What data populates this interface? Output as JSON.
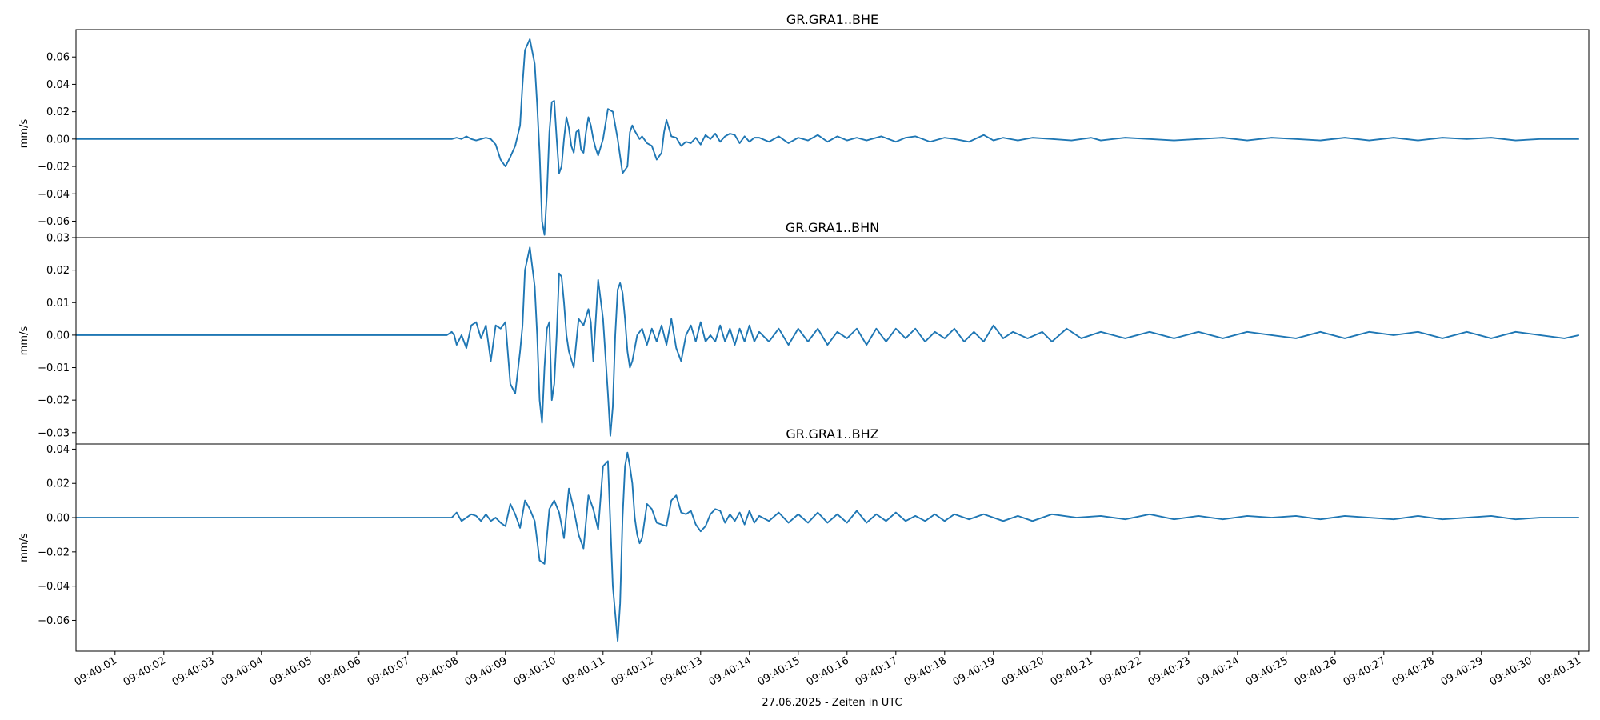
{
  "chart_data": [
    {
      "type": "line",
      "title": "GR.GRA1..BHE",
      "ylabel": "mm/s",
      "xlabel": "",
      "ylim": [
        -0.072,
        0.08
      ],
      "yticks": [
        -0.06,
        -0.04,
        -0.02,
        0.0,
        0.02,
        0.04,
        0.06
      ],
      "ytick_labels": [
        "−0.06",
        "−0.04",
        "−0.02",
        "0.00",
        "0.02",
        "0.04",
        "0.06"
      ],
      "color": "#1f77b4",
      "series": [
        {
          "x": [
            0.0,
            7.7,
            7.8,
            7.9,
            8.0,
            8.1,
            8.2,
            8.3,
            8.4,
            8.5,
            8.6,
            8.7,
            8.8,
            8.9,
            9.0,
            9.1,
            9.15,
            9.2,
            9.3,
            9.4,
            9.45,
            9.5,
            9.55,
            9.6,
            9.65,
            9.7,
            9.75,
            9.8,
            9.85,
            9.9,
            9.95,
            10.0,
            10.05,
            10.1,
            10.15,
            10.2,
            10.25,
            10.3,
            10.35,
            10.4,
            10.45,
            10.5,
            10.55,
            10.6,
            10.65,
            10.7,
            10.8,
            10.9,
            11.0,
            11.1,
            11.2,
            11.3,
            11.35,
            11.4,
            11.45,
            11.5,
            11.55,
            11.6,
            11.7,
            11.8,
            11.9,
            12.0,
            12.05,
            12.1,
            12.2,
            12.3,
            12.4,
            12.5,
            12.6,
            12.7,
            12.8,
            12.9,
            13.0,
            13.1,
            13.2,
            13.3,
            13.4,
            13.5,
            13.6,
            13.7,
            13.8,
            13.9,
            14.0,
            14.2,
            14.4,
            14.6,
            14.8,
            15.0,
            15.2,
            15.4,
            15.6,
            15.8,
            16.0,
            16.2,
            16.5,
            16.8,
            17.0,
            17.2,
            17.5,
            17.8,
            18.0,
            18.3,
            18.6,
            18.8,
            19.0,
            19.3,
            19.6,
            20.0,
            20.4,
            20.8,
            21.0,
            21.5,
            22.0,
            22.5,
            23.0,
            23.5,
            24.0,
            24.5,
            25.0,
            25.5,
            26.0,
            26.5,
            27.0,
            27.5,
            28.0,
            28.5,
            29.0,
            29.5,
            30.0,
            30.5,
            30.8
          ],
          "y": [
            0.0,
            0.0,
            0.001,
            0.0,
            0.002,
            0.0,
            -0.001,
            0.0,
            0.001,
            0.0,
            -0.004,
            -0.015,
            -0.02,
            -0.013,
            -0.005,
            0.01,
            0.04,
            0.065,
            0.073,
            0.055,
            0.025,
            -0.01,
            -0.06,
            -0.07,
            -0.04,
            0.005,
            0.027,
            0.028,
            0.0,
            -0.025,
            -0.02,
            0.0,
            0.016,
            0.008,
            -0.005,
            -0.01,
            0.005,
            0.007,
            -0.008,
            -0.01,
            0.005,
            0.016,
            0.01,
            0.0,
            -0.007,
            -0.012,
            0.0,
            0.022,
            0.02,
            0.0,
            -0.025,
            -0.02,
            0.005,
            0.01,
            0.006,
            0.003,
            0.0,
            0.002,
            -0.003,
            -0.005,
            -0.015,
            -0.01,
            0.005,
            0.014,
            0.002,
            0.001,
            -0.005,
            -0.002,
            -0.003,
            0.001,
            -0.004,
            0.003,
            0.0,
            0.004,
            -0.002,
            0.002,
            0.004,
            0.003,
            -0.003,
            0.002,
            -0.002,
            0.001,
            0.001,
            -0.002,
            0.002,
            -0.003,
            0.001,
            -0.001,
            0.003,
            -0.002,
            0.002,
            -0.001,
            0.001,
            -0.001,
            0.002,
            -0.002,
            0.001,
            0.002,
            -0.002,
            0.001,
            0.0,
            -0.002,
            0.003,
            -0.001,
            0.001,
            -0.001,
            0.001,
            0.0,
            -0.001,
            0.001,
            -0.001,
            0.001,
            0.0,
            -0.001,
            0.0,
            0.001,
            -0.001,
            0.001,
            0.0,
            -0.001,
            0.001,
            -0.001,
            0.001,
            -0.001,
            0.001,
            0.0,
            0.001,
            -0.001,
            0.0,
            0.0,
            0.0
          ]
        }
      ]
    },
    {
      "type": "line",
      "title": "GR.GRA1..BHN",
      "ylabel": "mm/s",
      "xlabel": "",
      "ylim": [
        -0.0335,
        0.03
      ],
      "yticks": [
        -0.03,
        -0.02,
        -0.01,
        0.0,
        0.01,
        0.02,
        0.03
      ],
      "ytick_labels": [
        "−0.03",
        "−0.02",
        "−0.01",
        "0.00",
        "0.01",
        "0.02",
        "0.03"
      ],
      "color": "#1f77b4",
      "series": [
        {
          "x": [
            0.0,
            7.6,
            7.7,
            7.75,
            7.8,
            7.9,
            8.0,
            8.1,
            8.2,
            8.3,
            8.4,
            8.5,
            8.6,
            8.7,
            8.8,
            8.9,
            9.0,
            9.1,
            9.15,
            9.2,
            9.3,
            9.4,
            9.45,
            9.5,
            9.55,
            9.6,
            9.65,
            9.7,
            9.75,
            9.8,
            9.85,
            9.9,
            9.95,
            10.0,
            10.05,
            10.1,
            10.2,
            10.3,
            10.4,
            10.5,
            10.55,
            10.6,
            10.7,
            10.8,
            10.9,
            10.95,
            11.0,
            11.05,
            11.1,
            11.15,
            11.2,
            11.25,
            11.3,
            11.35,
            11.4,
            11.5,
            11.6,
            11.7,
            11.8,
            11.9,
            12.0,
            12.1,
            12.2,
            12.3,
            12.4,
            12.5,
            12.6,
            12.7,
            12.8,
            12.9,
            13.0,
            13.1,
            13.2,
            13.3,
            13.4,
            13.5,
            13.6,
            13.7,
            13.8,
            13.9,
            14.0,
            14.2,
            14.4,
            14.6,
            14.8,
            15.0,
            15.2,
            15.4,
            15.6,
            15.8,
            16.0,
            16.2,
            16.4,
            16.6,
            16.8,
            17.0,
            17.2,
            17.4,
            17.6,
            17.8,
            18.0,
            18.2,
            18.4,
            18.6,
            18.8,
            19.0,
            19.2,
            19.5,
            19.8,
            20.0,
            20.3,
            20.6,
            21.0,
            21.5,
            22.0,
            22.5,
            23.0,
            23.5,
            24.0,
            24.5,
            25.0,
            25.5,
            26.0,
            26.5,
            27.0,
            27.5,
            28.0,
            28.5,
            29.0,
            29.5,
            30.0,
            30.5,
            30.8
          ],
          "y": [
            0.0,
            0.0,
            0.001,
            0.0,
            -0.003,
            0.0,
            -0.004,
            0.003,
            0.004,
            -0.001,
            0.003,
            -0.008,
            0.003,
            0.002,
            0.004,
            -0.015,
            -0.018,
            -0.005,
            0.003,
            0.02,
            0.027,
            0.015,
            0.0,
            -0.02,
            -0.027,
            -0.01,
            0.002,
            0.004,
            -0.02,
            -0.015,
            0.0,
            0.019,
            0.018,
            0.01,
            0.0,
            -0.005,
            -0.01,
            0.005,
            0.003,
            0.008,
            0.004,
            -0.008,
            0.017,
            0.005,
            -0.018,
            -0.031,
            -0.022,
            0.0,
            0.014,
            0.016,
            0.013,
            0.005,
            -0.005,
            -0.01,
            -0.008,
            0.0,
            0.002,
            -0.003,
            0.002,
            -0.002,
            0.003,
            -0.003,
            0.005,
            -0.004,
            -0.008,
            0.0,
            0.003,
            -0.002,
            0.004,
            -0.002,
            0.0,
            -0.002,
            0.003,
            -0.002,
            0.002,
            -0.003,
            0.002,
            -0.002,
            0.003,
            -0.002,
            0.001,
            -0.002,
            0.002,
            -0.003,
            0.002,
            -0.002,
            0.002,
            -0.003,
            0.001,
            -0.001,
            0.002,
            -0.003,
            0.002,
            -0.002,
            0.002,
            -0.001,
            0.002,
            -0.002,
            0.001,
            -0.001,
            0.002,
            -0.002,
            0.001,
            -0.002,
            0.003,
            -0.001,
            0.001,
            -0.001,
            0.001,
            -0.002,
            0.002,
            -0.001,
            0.001,
            -0.001,
            0.001,
            -0.001,
            0.001,
            -0.001,
            0.001,
            0.0,
            -0.001,
            0.001,
            -0.001,
            0.001,
            0.0,
            0.001,
            -0.001,
            0.001,
            -0.001,
            0.001,
            0.0,
            -0.001,
            0.0
          ]
        }
      ]
    },
    {
      "type": "line",
      "title": "GR.GRA1..BHZ",
      "ylabel": "mm/s",
      "xlabel": "",
      "ylim": [
        -0.078,
        0.043
      ],
      "yticks": [
        -0.06,
        -0.04,
        -0.02,
        0.0,
        0.02,
        0.04
      ],
      "ytick_labels": [
        "−0.06",
        "−0.04",
        "−0.02",
        "0.00",
        "0.02",
        "0.04"
      ],
      "color": "#1f77b4",
      "series": [
        {
          "x": [
            0.0,
            7.7,
            7.8,
            7.9,
            8.0,
            8.1,
            8.2,
            8.3,
            8.4,
            8.5,
            8.6,
            8.7,
            8.8,
            8.9,
            9.0,
            9.1,
            9.2,
            9.3,
            9.4,
            9.5,
            9.6,
            9.7,
            9.8,
            9.9,
            10.0,
            10.1,
            10.2,
            10.3,
            10.4,
            10.5,
            10.6,
            10.7,
            10.8,
            10.9,
            11.0,
            11.1,
            11.15,
            11.2,
            11.25,
            11.3,
            11.35,
            11.4,
            11.45,
            11.5,
            11.55,
            11.6,
            11.7,
            11.8,
            11.9,
            12.0,
            12.1,
            12.2,
            12.3,
            12.4,
            12.5,
            12.6,
            12.7,
            12.8,
            12.9,
            13.0,
            13.1,
            13.2,
            13.3,
            13.4,
            13.5,
            13.6,
            13.7,
            13.8,
            13.9,
            14.0,
            14.2,
            14.4,
            14.6,
            14.8,
            15.0,
            15.2,
            15.4,
            15.6,
            15.8,
            16.0,
            16.2,
            16.4,
            16.6,
            16.8,
            17.0,
            17.2,
            17.4,
            17.6,
            17.8,
            18.0,
            18.3,
            18.6,
            19.0,
            19.3,
            19.6,
            20.0,
            20.5,
            21.0,
            21.5,
            22.0,
            22.5,
            23.0,
            23.5,
            24.0,
            24.5,
            25.0,
            25.5,
            26.0,
            26.5,
            27.0,
            27.5,
            28.0,
            28.5,
            29.0,
            29.5,
            30.0,
            30.5,
            30.8
          ],
          "y": [
            0.0,
            0.0,
            0.003,
            -0.002,
            0.0,
            0.002,
            0.001,
            -0.002,
            0.002,
            -0.002,
            0.0,
            -0.003,
            -0.005,
            0.008,
            0.002,
            -0.006,
            0.01,
            0.005,
            -0.002,
            -0.025,
            -0.027,
            0.005,
            0.01,
            0.003,
            -0.012,
            0.017,
            0.005,
            -0.01,
            -0.018,
            0.013,
            0.005,
            -0.007,
            0.03,
            0.033,
            -0.04,
            -0.072,
            -0.05,
            0.0,
            0.03,
            0.038,
            0.03,
            0.02,
            0.0,
            -0.01,
            -0.015,
            -0.012,
            0.008,
            0.005,
            -0.003,
            -0.004,
            -0.005,
            0.01,
            0.013,
            0.003,
            0.002,
            0.004,
            -0.004,
            -0.008,
            -0.005,
            0.002,
            0.005,
            0.004,
            -0.003,
            0.002,
            -0.002,
            0.003,
            -0.004,
            0.004,
            -0.003,
            0.001,
            -0.002,
            0.003,
            -0.003,
            0.002,
            -0.003,
            0.003,
            -0.003,
            0.002,
            -0.003,
            0.004,
            -0.003,
            0.002,
            -0.002,
            0.003,
            -0.002,
            0.001,
            -0.002,
            0.002,
            -0.002,
            0.002,
            -0.001,
            0.002,
            -0.002,
            0.001,
            -0.002,
            0.002,
            0.0,
            0.001,
            -0.001,
            0.002,
            -0.001,
            0.001,
            -0.001,
            0.001,
            0.0,
            0.001,
            -0.001,
            0.001,
            0.0,
            -0.001,
            0.001,
            -0.001,
            0.0,
            0.001,
            -0.001,
            0.0,
            0.0,
            0.0
          ]
        }
      ]
    }
  ],
  "x_axis": {
    "start_time": "09:40:00.2",
    "tick_labels": [
      "09:40:01",
      "09:40:02",
      "09:40:03",
      "09:40:04",
      "09:40:05",
      "09:40:06",
      "09:40:07",
      "09:40:08",
      "09:40:09",
      "09:40:10",
      "09:40:11",
      "09:40:12",
      "09:40:13",
      "09:40:14",
      "09:40:15",
      "09:40:16",
      "09:40:17",
      "09:40:18",
      "09:40:19",
      "09:40:20",
      "09:40:21",
      "09:40:22",
      "09:40:23",
      "09:40:24",
      "09:40:25",
      "09:40:26",
      "09:40:27",
      "09:40:28",
      "09:40:29",
      "09:40:30",
      "09:40:31"
    ],
    "tick_times_s": [
      1,
      2,
      3,
      4,
      5,
      6,
      7,
      8,
      9,
      10,
      11,
      12,
      13,
      14,
      15,
      16,
      17,
      18,
      19,
      20,
      21,
      22,
      23,
      24,
      25,
      26,
      27,
      28,
      29,
      30,
      31
    ],
    "xlim_s": [
      0.2,
      31.2
    ],
    "xlabel": "27.06.2025 - Zeiten in UTC"
  }
}
